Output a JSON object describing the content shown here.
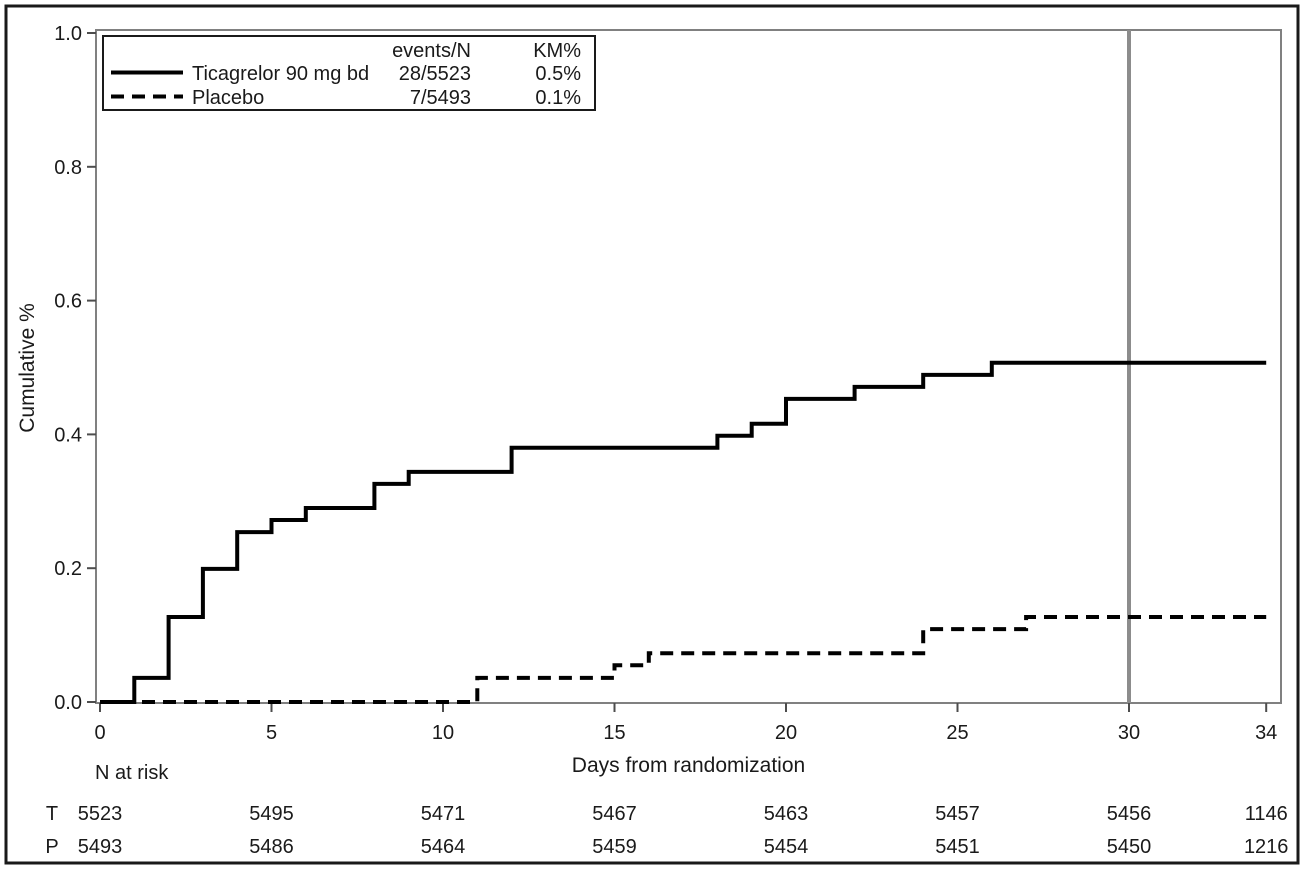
{
  "figure": {
    "background": "#ffffff",
    "outer_frame_color": "#1a1a1a",
    "plot_frame_color": "#808080",
    "tick_color": "#4d4d4d",
    "text_color": "#1a1a1a",
    "curve_color": "#000000",
    "reference_line_color": "#8c8c8c"
  },
  "chart_data": {
    "type": "line",
    "subtype": "kaplan-meier-step",
    "title": "",
    "xlabel": "Days from randomization",
    "ylabel": "Cumulative %",
    "xlim": [
      0,
      34
    ],
    "ylim": [
      0.0,
      1.0
    ],
    "xticks": [
      0,
      5,
      10,
      15,
      20,
      25,
      30,
      34
    ],
    "xtick_labels": [
      "0",
      "5",
      "10",
      "15",
      "20",
      "25",
      "30",
      "34"
    ],
    "yticks": [
      0.0,
      0.2,
      0.4,
      0.6,
      0.8,
      1.0
    ],
    "ytick_labels": [
      "0.0",
      "0.2",
      "0.4",
      "0.6",
      "0.8",
      "1.0"
    ],
    "grid": false,
    "reference_line_x": 30,
    "legend": {
      "position": "top-left",
      "col_headers": {
        "events": "events/N",
        "km": "KM%"
      },
      "entries": [
        {
          "name": "Ticagrelor 90 mg bd",
          "line_style": "solid",
          "events_n": "28/5523",
          "km_pct": "0.5%"
        },
        {
          "name": "Placebo",
          "line_style": "dashed",
          "events_n": "7/5493",
          "km_pct": "0.1%"
        }
      ]
    },
    "series": [
      {
        "name": "Ticagrelor 90 mg bd",
        "style": "solid",
        "steps": [
          [
            0,
            0
          ],
          [
            1,
            0.036
          ],
          [
            2,
            0.127
          ],
          [
            3,
            0.199
          ],
          [
            4,
            0.254
          ],
          [
            5,
            0.272
          ],
          [
            6,
            0.29
          ],
          [
            8,
            0.326
          ],
          [
            9,
            0.344
          ],
          [
            12,
            0.38
          ],
          [
            18,
            0.398
          ],
          [
            19,
            0.416
          ],
          [
            20,
            0.453
          ],
          [
            22,
            0.471
          ],
          [
            24,
            0.489
          ],
          [
            26,
            0.507
          ],
          [
            34,
            0.507
          ]
        ]
      },
      {
        "name": "Placebo",
        "style": "dashed",
        "steps": [
          [
            0,
            0
          ],
          [
            11,
            0.036
          ],
          [
            15,
            0.055
          ],
          [
            16,
            0.073
          ],
          [
            24,
            0.109
          ],
          [
            27,
            0.127
          ],
          [
            34,
            0.127
          ]
        ]
      }
    ],
    "n_at_risk": {
      "label": "N at risk",
      "times": [
        0,
        5,
        10,
        15,
        20,
        25,
        30,
        34
      ],
      "rows": [
        {
          "label": "T",
          "values": [
            "5523",
            "5495",
            "5471",
            "5467",
            "5463",
            "5457",
            "5456",
            "1146"
          ]
        },
        {
          "label": "P",
          "values": [
            "5493",
            "5486",
            "5464",
            "5459",
            "5454",
            "5451",
            "5450",
            "1216"
          ]
        }
      ]
    }
  }
}
